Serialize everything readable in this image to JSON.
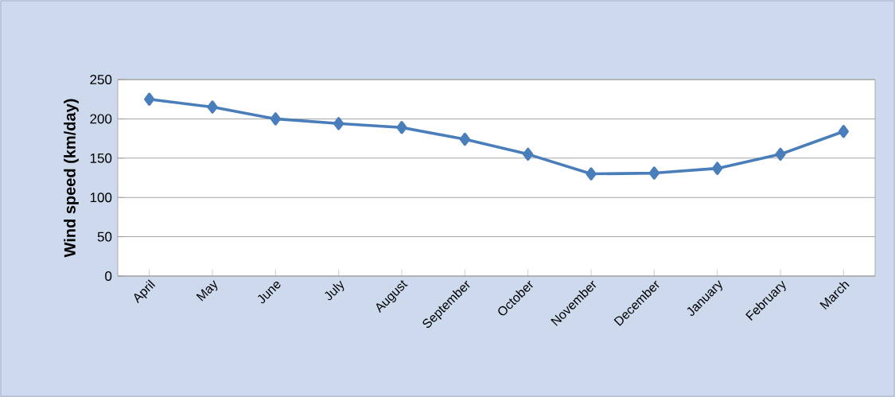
{
  "chart_data": {
    "type": "line",
    "ylabel": "Wind speed (km/day)",
    "categories": [
      "April",
      "May",
      "June",
      "July",
      "August",
      "September",
      "October",
      "November",
      "December",
      "January",
      "February",
      "March"
    ],
    "series": [
      {
        "color": "#4a7ebb",
        "values": [
          225,
          215,
          200,
          194,
          189,
          174,
          155,
          130,
          131,
          137,
          155,
          184
        ]
      }
    ],
    "ylim": [
      0,
      250
    ],
    "yticks": [
      0,
      50,
      100,
      150,
      200,
      250
    ],
    "grid": "y",
    "marker": "diamond",
    "line_style": "solid"
  }
}
